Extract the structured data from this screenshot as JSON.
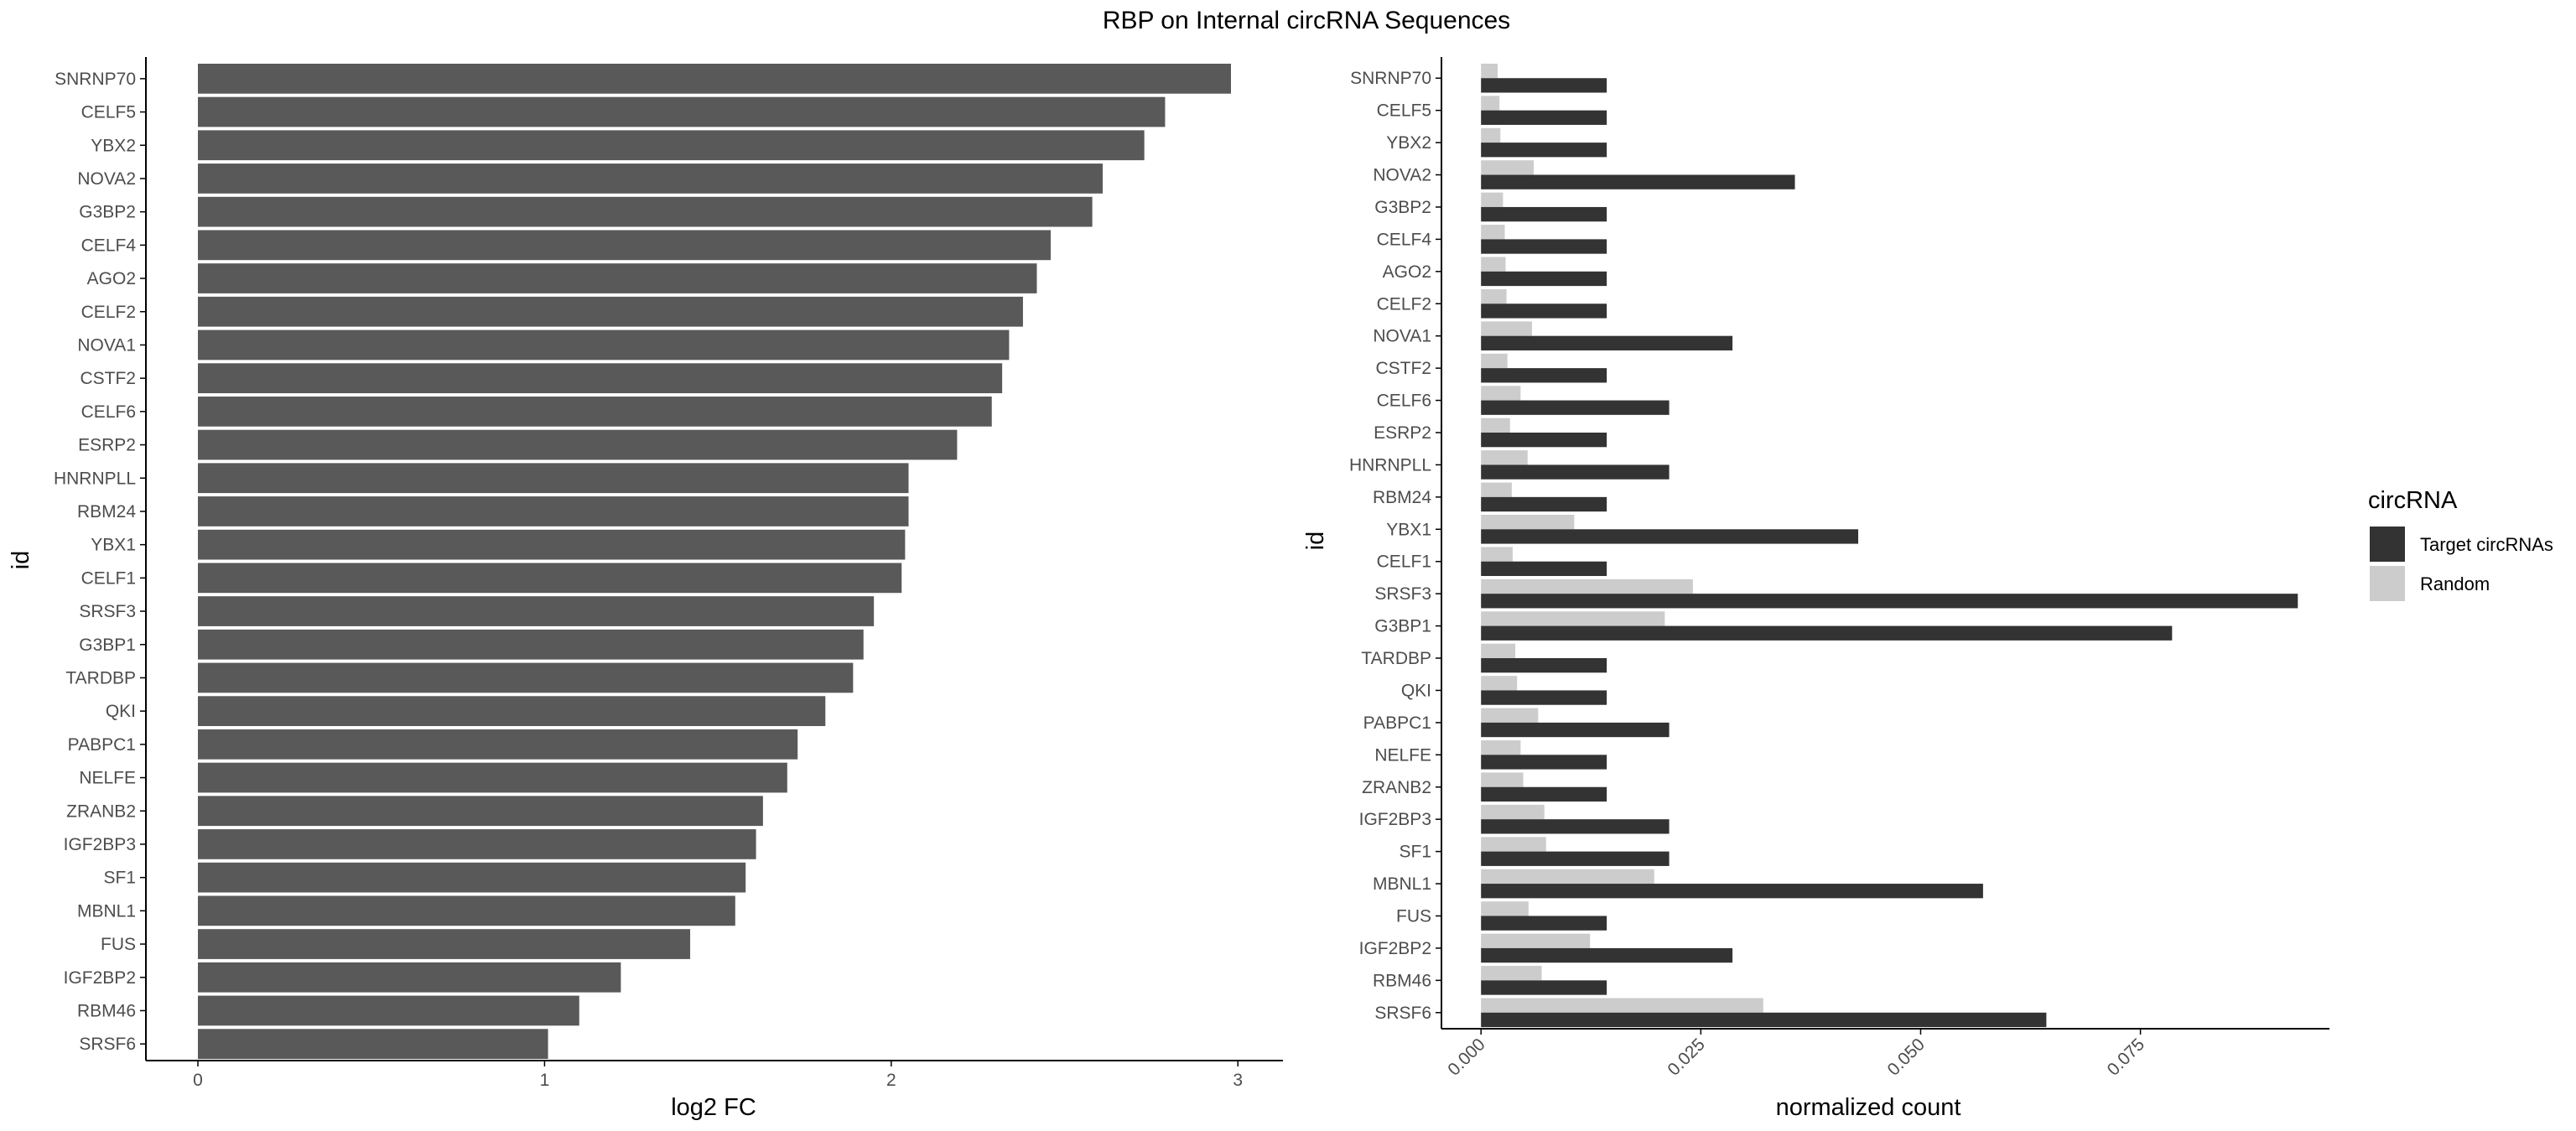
{
  "figure": {
    "title": "RBP on Internal circRNA Sequences"
  },
  "colors": {
    "fc_bar": "#595959",
    "target": "#333333",
    "random": "#cccccc",
    "axis": "#000000",
    "tick_text": "#4d4d4d"
  },
  "chart_data": [
    {
      "type": "bar",
      "orientation": "horizontal",
      "title": "",
      "xlabel": "log2 FC",
      "ylabel": "id",
      "xlim": [
        -0.15,
        3.13
      ],
      "xticks": [
        0,
        1,
        2,
        3
      ],
      "grid": false,
      "categories": [
        "SNRNP70",
        "CELF5",
        "YBX2",
        "NOVA2",
        "G3BP2",
        "CELF4",
        "AGO2",
        "CELF2",
        "NOVA1",
        "CSTF2",
        "CELF6",
        "ESRP2",
        "HNRNPLL",
        "RBM24",
        "YBX1",
        "CELF1",
        "SRSF3",
        "G3BP1",
        "TARDBP",
        "QKI",
        "PABPC1",
        "NELFE",
        "ZRANB2",
        "IGF2BP3",
        "SF1",
        "MBNL1",
        "FUS",
        "IGF2BP2",
        "RBM46",
        "SRSF6"
      ],
      "values": [
        2.98,
        2.79,
        2.73,
        2.61,
        2.58,
        2.46,
        2.42,
        2.38,
        2.34,
        2.32,
        2.29,
        2.19,
        2.05,
        2.05,
        2.04,
        2.03,
        1.95,
        1.92,
        1.89,
        1.81,
        1.73,
        1.7,
        1.63,
        1.61,
        1.58,
        1.55,
        1.42,
        1.22,
        1.1,
        1.01
      ]
    },
    {
      "type": "bar",
      "orientation": "horizontal",
      "grouped": true,
      "title": "",
      "xlabel": "normalized count",
      "ylabel": "id",
      "xlim": [
        -0.0045,
        0.0965
      ],
      "xticks": [
        0.0,
        0.025,
        0.05,
        0.075
      ],
      "xtick_labels": [
        "0.000",
        "0.025",
        "0.050",
        "0.075"
      ],
      "grid": false,
      "legend": {
        "title": "circRNA",
        "position": "right"
      },
      "categories": [
        "SNRNP70",
        "CELF5",
        "YBX2",
        "NOVA2",
        "G3BP2",
        "CELF4",
        "AGO2",
        "CELF2",
        "NOVA1",
        "CSTF2",
        "CELF6",
        "ESRP2",
        "HNRNPLL",
        "RBM24",
        "YBX1",
        "CELF1",
        "SRSF3",
        "G3BP1",
        "TARDBP",
        "QKI",
        "PABPC1",
        "NELFE",
        "ZRANB2",
        "IGF2BP3",
        "SF1",
        "MBNL1",
        "FUS",
        "IGF2BP2",
        "RBM46",
        "SRSF6"
      ],
      "series": [
        {
          "name": "Target circRNAs",
          "color": "#333333",
          "values": [
            0.0143,
            0.0143,
            0.0143,
            0.0357,
            0.0143,
            0.0143,
            0.0143,
            0.0143,
            0.0286,
            0.0143,
            0.0214,
            0.0143,
            0.0214,
            0.0143,
            0.0429,
            0.0143,
            0.0929,
            0.0786,
            0.0143,
            0.0143,
            0.0214,
            0.0143,
            0.0143,
            0.0214,
            0.0214,
            0.0571,
            0.0143,
            0.0286,
            0.0143,
            0.0643
          ]
        },
        {
          "name": "Random",
          "color": "#cccccc",
          "values": [
            0.0019,
            0.0021,
            0.0022,
            0.006,
            0.0025,
            0.0027,
            0.0028,
            0.0029,
            0.0058,
            0.003,
            0.0045,
            0.0033,
            0.0053,
            0.0035,
            0.0106,
            0.0036,
            0.0241,
            0.0209,
            0.0039,
            0.0041,
            0.0065,
            0.0045,
            0.0048,
            0.0072,
            0.0074,
            0.0197,
            0.0054,
            0.0124,
            0.0069,
            0.0321
          ]
        }
      ]
    }
  ]
}
